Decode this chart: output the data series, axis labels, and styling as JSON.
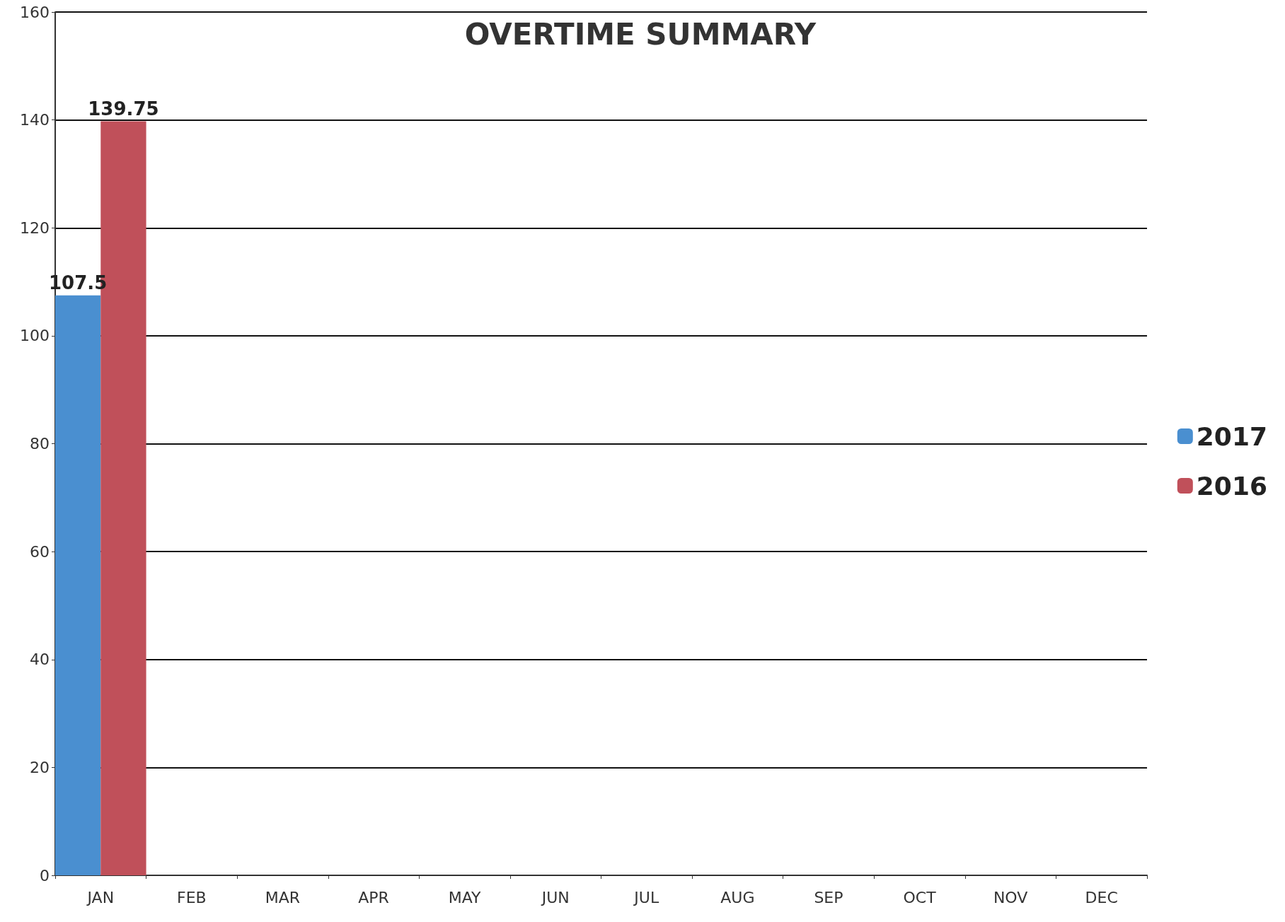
{
  "chart_data": {
    "type": "bar",
    "title": "OVERTIME SUMMARY",
    "categories": [
      "JAN",
      "FEB",
      "MAR",
      "APR",
      "MAY",
      "JUN",
      "JUL",
      "AUG",
      "SEP",
      "OCT",
      "NOV",
      "DEC"
    ],
    "series": [
      {
        "name": "2017",
        "color": "#4a8fd0",
        "values": [
          107.5,
          null,
          null,
          null,
          null,
          null,
          null,
          null,
          null,
          null,
          null,
          null
        ]
      },
      {
        "name": "2016",
        "color": "#c0505a",
        "values": [
          139.75,
          null,
          null,
          null,
          null,
          null,
          null,
          null,
          null,
          null,
          null,
          null
        ]
      }
    ],
    "ylim": [
      0,
      160
    ],
    "yticks": [
      0,
      20,
      40,
      60,
      80,
      100,
      120,
      140,
      160
    ],
    "grid": "y",
    "legend": "right",
    "data_labels": true
  }
}
